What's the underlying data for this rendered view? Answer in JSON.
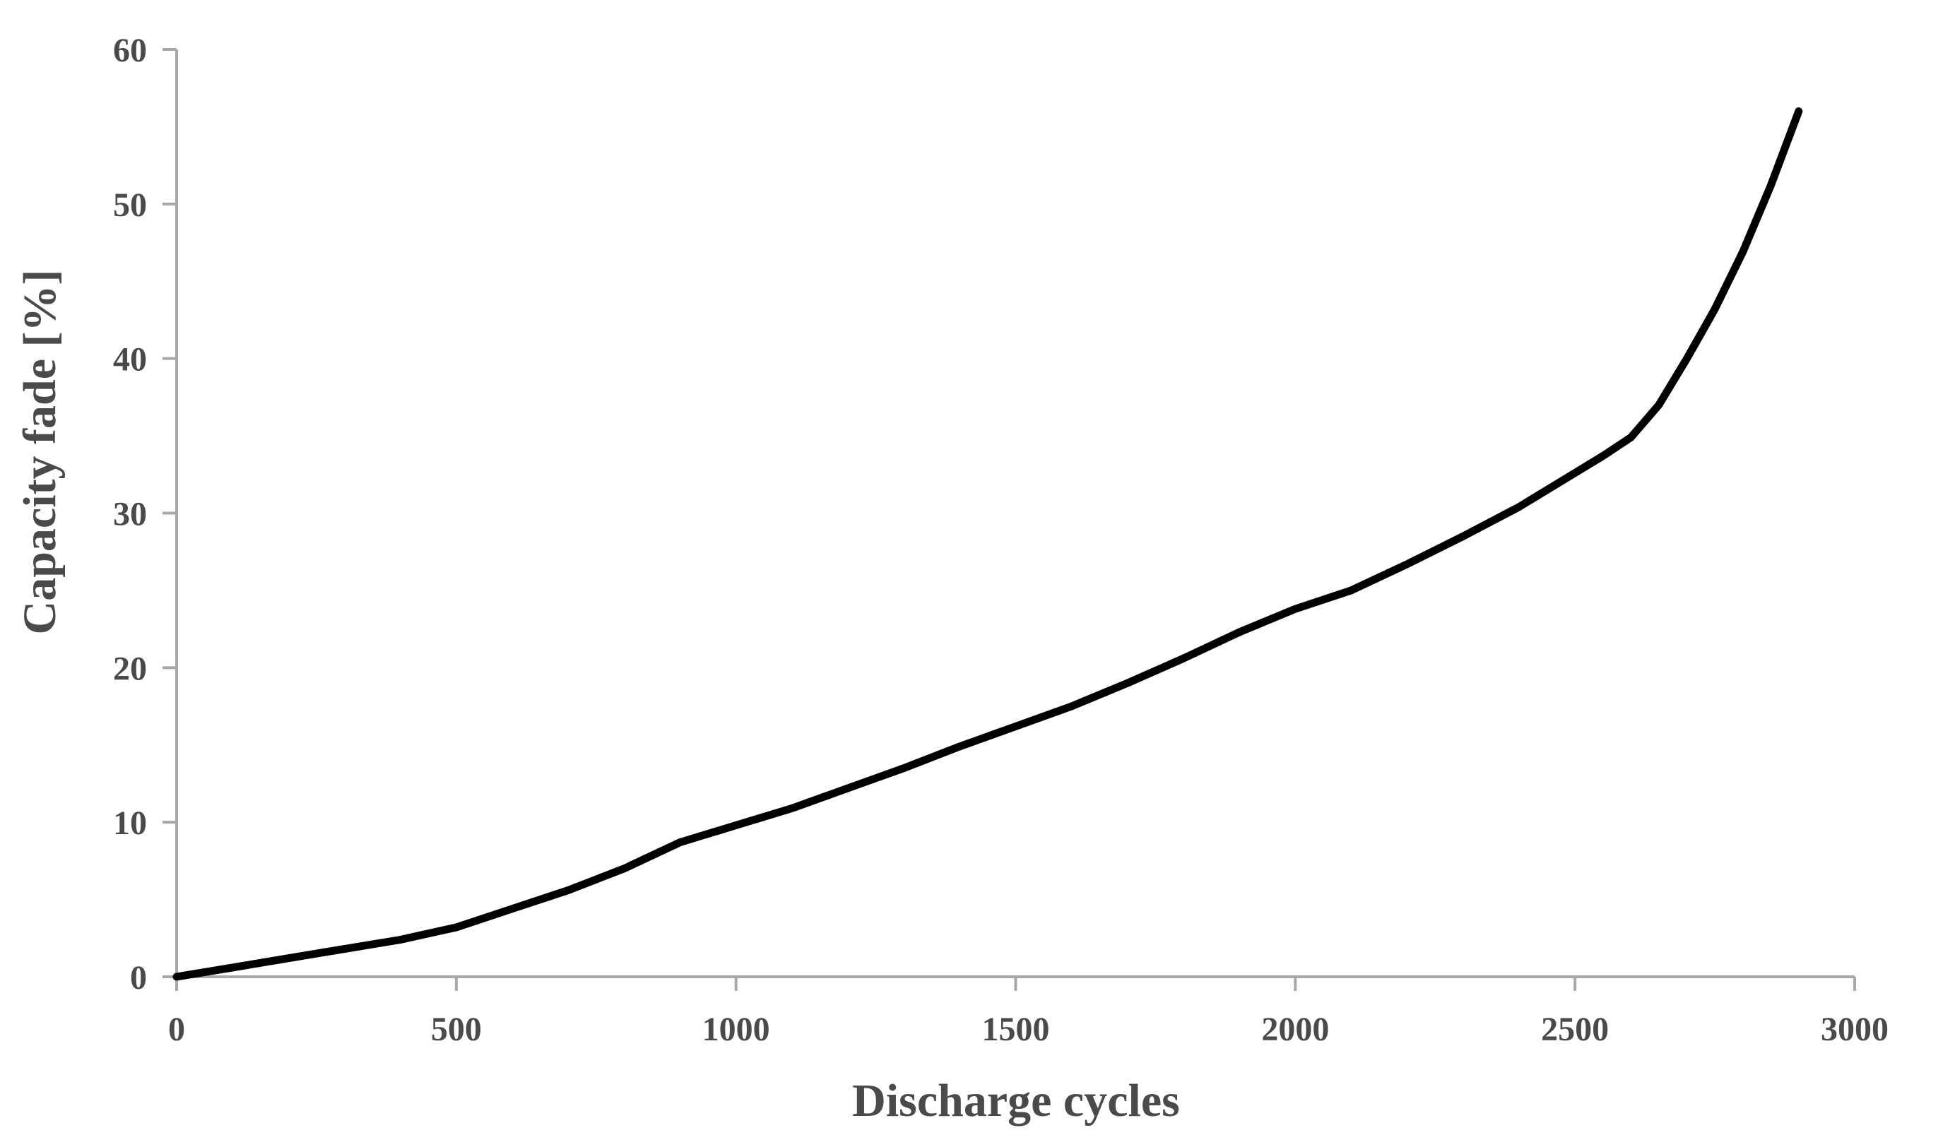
{
  "figure": {
    "background_color": "#ffffff"
  },
  "chart_data": {
    "type": "line",
    "title": "",
    "xlabel": "Discharge cycles",
    "ylabel": "Capacity fade [%]",
    "xlim": [
      0,
      3000
    ],
    "ylim": [
      0,
      60
    ],
    "x_ticks": [
      0,
      500,
      1000,
      1500,
      2000,
      2500,
      3000
    ],
    "y_ticks": [
      0,
      10,
      20,
      30,
      40,
      50,
      60
    ],
    "grid": false,
    "legend": "none",
    "axis_color": "#a8a8a8",
    "label_color": "#4a4a4a",
    "series": [
      {
        "name": "capacity-fade-curve",
        "color": "#000000",
        "stroke_width": 11,
        "points": [
          [
            0,
            0
          ],
          [
            100,
            0.6
          ],
          [
            200,
            1.2
          ],
          [
            300,
            1.8
          ],
          [
            400,
            2.4
          ],
          [
            500,
            3.2
          ],
          [
            600,
            4.4
          ],
          [
            700,
            5.6
          ],
          [
            800,
            7.0
          ],
          [
            900,
            8.7
          ],
          [
            1000,
            9.8
          ],
          [
            1100,
            10.9
          ],
          [
            1200,
            12.2
          ],
          [
            1300,
            13.5
          ],
          [
            1400,
            14.9
          ],
          [
            1500,
            16.2
          ],
          [
            1600,
            17.5
          ],
          [
            1700,
            19.0
          ],
          [
            1800,
            20.6
          ],
          [
            1900,
            22.3
          ],
          [
            2000,
            23.8
          ],
          [
            2100,
            25.0
          ],
          [
            2200,
            26.7
          ],
          [
            2300,
            28.5
          ],
          [
            2400,
            30.4
          ],
          [
            2500,
            32.6
          ],
          [
            2550,
            33.7
          ],
          [
            2600,
            34.9
          ],
          [
            2650,
            37.0
          ],
          [
            2700,
            40.0
          ],
          [
            2750,
            43.2
          ],
          [
            2800,
            46.9
          ],
          [
            2850,
            51.2
          ],
          [
            2900,
            56.0
          ]
        ]
      }
    ]
  }
}
